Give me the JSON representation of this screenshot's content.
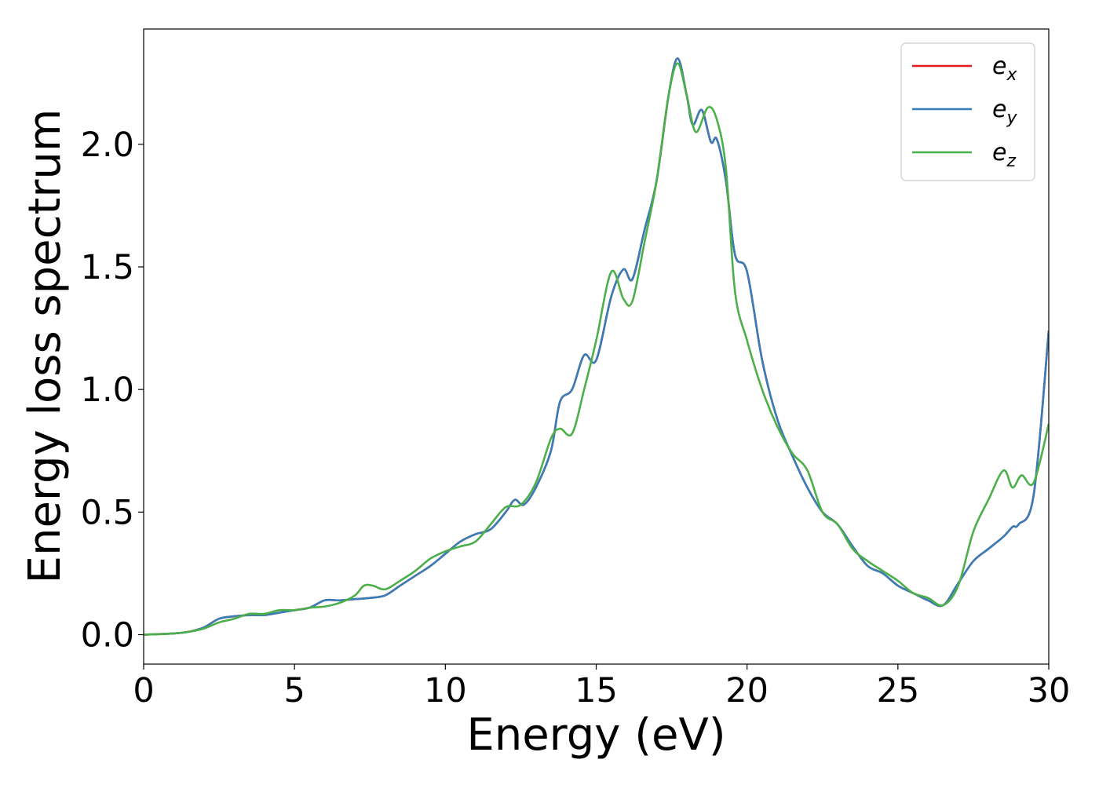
{
  "chart_data": {
    "type": "line",
    "title": "",
    "xlabel": "Energy (eV)",
    "ylabel": "Energy loss spectrum",
    "xlim": [
      0,
      30
    ],
    "ylim": [
      -0.12,
      2.47
    ],
    "xticks": [
      0,
      5,
      10,
      15,
      20,
      25,
      30
    ],
    "xtick_labels": [
      "0",
      "5",
      "10",
      "15",
      "20",
      "25",
      "30"
    ],
    "yticks": [
      0.0,
      0.5,
      1.0,
      1.5,
      2.0
    ],
    "ytick_labels": [
      "0.0",
      "0.5",
      "1.0",
      "1.5",
      "2.0"
    ],
    "grid": false,
    "legend_position": "top-right",
    "series": [
      {
        "name": "e_x",
        "label_base": "e",
        "label_sub": "x",
        "color": "#e41a1c",
        "x": [
          0,
          1,
          1.5,
          2,
          2.5,
          3,
          3.5,
          4,
          4.5,
          5,
          5.5,
          6,
          6.5,
          7,
          7.5,
          8,
          8.5,
          9,
          9.5,
          10,
          10.5,
          11,
          11.5,
          12,
          12.3,
          12.6,
          13,
          13.5,
          13.8,
          14.2,
          14.6,
          15,
          15.5,
          15.9,
          16.2,
          16.6,
          17,
          17.4,
          17.7,
          18,
          18.2,
          18.5,
          18.8,
          19,
          19.3,
          19.6,
          20,
          20.5,
          21,
          21.5,
          22,
          22.5,
          23,
          23.5,
          24,
          24.5,
          25,
          25.5,
          26,
          26.5,
          27,
          27.5,
          28,
          28.5,
          28.8,
          29,
          29.5,
          30
        ],
        "y": [
          0,
          0.005,
          0.012,
          0.03,
          0.065,
          0.075,
          0.08,
          0.08,
          0.09,
          0.1,
          0.11,
          0.14,
          0.14,
          0.145,
          0.15,
          0.16,
          0.2,
          0.24,
          0.28,
          0.33,
          0.38,
          0.41,
          0.43,
          0.5,
          0.55,
          0.53,
          0.6,
          0.75,
          0.95,
          1.0,
          1.14,
          1.12,
          1.38,
          1.49,
          1.45,
          1.65,
          1.85,
          2.2,
          2.35,
          2.2,
          2.08,
          2.14,
          2.01,
          2.02,
          1.85,
          1.55,
          1.48,
          1.12,
          0.88,
          0.73,
          0.6,
          0.5,
          0.45,
          0.36,
          0.28,
          0.25,
          0.2,
          0.17,
          0.14,
          0.12,
          0.21,
          0.3,
          0.35,
          0.4,
          0.44,
          0.45,
          0.57,
          1.24
        ]
      },
      {
        "name": "e_y",
        "label_base": "e",
        "label_sub": "y",
        "color": "#377eb8",
        "x": [
          0,
          1,
          1.5,
          2,
          2.5,
          3,
          3.5,
          4,
          4.5,
          5,
          5.5,
          6,
          6.5,
          7,
          7.5,
          8,
          8.5,
          9,
          9.5,
          10,
          10.5,
          11,
          11.5,
          12,
          12.3,
          12.6,
          13,
          13.5,
          13.8,
          14.2,
          14.6,
          15,
          15.5,
          15.9,
          16.2,
          16.6,
          17,
          17.4,
          17.7,
          18,
          18.2,
          18.5,
          18.8,
          19,
          19.3,
          19.6,
          20,
          20.5,
          21,
          21.5,
          22,
          22.5,
          23,
          23.5,
          24,
          24.5,
          25,
          25.5,
          26,
          26.5,
          27,
          27.5,
          28,
          28.5,
          28.8,
          29,
          29.5,
          30
        ],
        "y": [
          0,
          0.005,
          0.012,
          0.03,
          0.065,
          0.075,
          0.08,
          0.08,
          0.09,
          0.1,
          0.11,
          0.14,
          0.14,
          0.145,
          0.15,
          0.16,
          0.2,
          0.24,
          0.28,
          0.33,
          0.38,
          0.41,
          0.43,
          0.5,
          0.55,
          0.53,
          0.6,
          0.75,
          0.95,
          1.0,
          1.14,
          1.12,
          1.38,
          1.49,
          1.45,
          1.65,
          1.85,
          2.2,
          2.35,
          2.2,
          2.08,
          2.14,
          2.01,
          2.02,
          1.85,
          1.55,
          1.48,
          1.12,
          0.88,
          0.73,
          0.6,
          0.5,
          0.45,
          0.36,
          0.28,
          0.25,
          0.2,
          0.17,
          0.14,
          0.12,
          0.21,
          0.3,
          0.35,
          0.4,
          0.44,
          0.45,
          0.57,
          1.24
        ]
      },
      {
        "name": "e_z",
        "label_base": "e",
        "label_sub": "z",
        "color": "#4daf4a",
        "x": [
          0,
          1,
          1.5,
          2,
          2.5,
          3,
          3.5,
          4,
          4.5,
          5,
          5.5,
          6,
          6.5,
          7,
          7.3,
          7.6,
          8,
          8.5,
          9,
          9.5,
          10,
          10.5,
          11,
          11.5,
          12,
          12.5,
          13,
          13.5,
          13.8,
          14.2,
          14.6,
          15,
          15.5,
          15.9,
          16.2,
          16.6,
          17,
          17.4,
          17.7,
          18,
          18.3,
          18.7,
          19,
          19.3,
          19.6,
          20,
          20.5,
          21,
          21.5,
          22,
          22.5,
          23,
          23.5,
          24,
          24.5,
          25,
          25.5,
          26,
          26.5,
          27,
          27.5,
          28,
          28.5,
          28.8,
          29.1,
          29.5,
          30
        ],
        "y": [
          0,
          0.005,
          0.012,
          0.025,
          0.05,
          0.065,
          0.085,
          0.085,
          0.1,
          0.1,
          0.11,
          0.115,
          0.13,
          0.16,
          0.2,
          0.2,
          0.185,
          0.22,
          0.26,
          0.31,
          0.34,
          0.36,
          0.38,
          0.45,
          0.52,
          0.53,
          0.62,
          0.8,
          0.84,
          0.82,
          1.0,
          1.2,
          1.48,
          1.37,
          1.36,
          1.6,
          1.85,
          2.2,
          2.33,
          2.2,
          2.05,
          2.15,
          2.1,
          1.9,
          1.4,
          1.2,
          1.0,
          0.85,
          0.74,
          0.67,
          0.5,
          0.45,
          0.35,
          0.3,
          0.26,
          0.22,
          0.17,
          0.15,
          0.12,
          0.2,
          0.42,
          0.55,
          0.67,
          0.6,
          0.65,
          0.62,
          0.86
        ]
      }
    ]
  }
}
